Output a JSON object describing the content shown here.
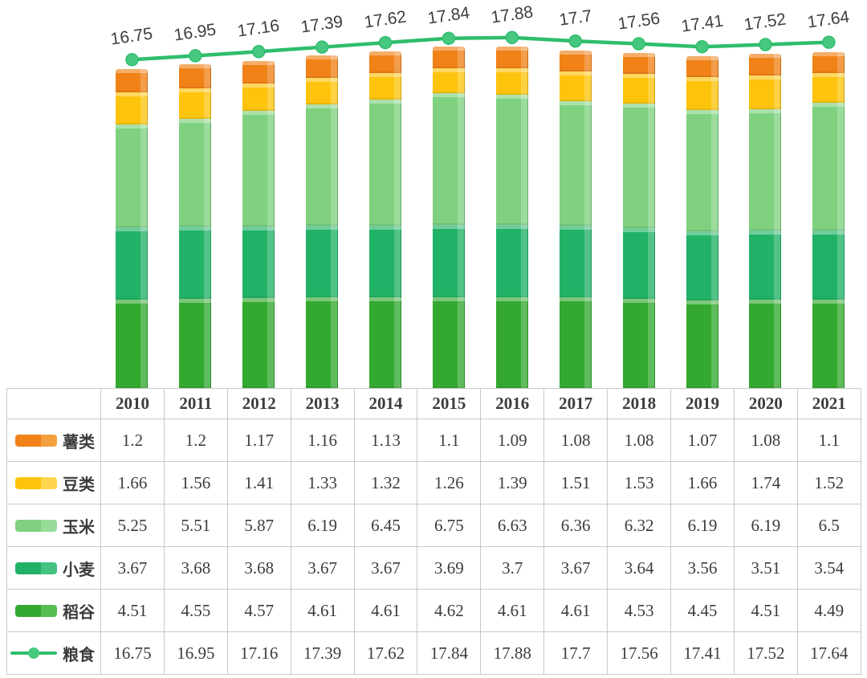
{
  "chart_data": {
    "type": "bar",
    "subtype": "stacked-3d-bars-with-total-line",
    "title": "",
    "categories": [
      "2010",
      "2011",
      "2012",
      "2013",
      "2014",
      "2015",
      "2016",
      "2017",
      "2018",
      "2019",
      "2020",
      "2021"
    ],
    "series": [
      {
        "name": "薯类",
        "type": "bar",
        "color": "#F08218",
        "color_light": "#F5A040",
        "values": [
          "1.2",
          "1.2",
          "1.17",
          "1.16",
          "1.13",
          "1.1",
          "1.09",
          "1.08",
          "1.08",
          "1.07",
          "1.08",
          "1.1"
        ]
      },
      {
        "name": "豆类",
        "type": "bar",
        "color": "#FEC40D",
        "color_light": "#FFD44F",
        "values": [
          "1.66",
          "1.56",
          "1.41",
          "1.33",
          "1.32",
          "1.26",
          "1.39",
          "1.51",
          "1.53",
          "1.66",
          "1.74",
          "1.52"
        ]
      },
      {
        "name": "玉米",
        "type": "bar",
        "color": "#7FD17F",
        "color_light": "#97DC98",
        "values": [
          "5.25",
          "5.51",
          "5.87",
          "6.19",
          "6.45",
          "6.75",
          "6.63",
          "6.36",
          "6.32",
          "6.19",
          "6.19",
          "6.5"
        ]
      },
      {
        "name": "小麦",
        "type": "bar",
        "color": "#22B267",
        "color_light": "#44C282",
        "values": [
          "3.67",
          "3.68",
          "3.68",
          "3.67",
          "3.67",
          "3.69",
          "3.7",
          "3.67",
          "3.64",
          "3.56",
          "3.51",
          "3.54"
        ]
      },
      {
        "name": "稻谷",
        "type": "bar",
        "color": "#33A930",
        "color_light": "#56BD53",
        "values": [
          "4.51",
          "4.55",
          "4.57",
          "4.61",
          "4.61",
          "4.62",
          "4.61",
          "4.61",
          "4.53",
          "4.45",
          "4.51",
          "4.49"
        ]
      },
      {
        "name": "粮食",
        "type": "line",
        "color": "#2EBD6C",
        "marker_color": "#47C87F",
        "values": [
          "16.75",
          "16.95",
          "17.16",
          "17.39",
          "17.62",
          "17.84",
          "17.88",
          "17.7",
          "17.56",
          "17.41",
          "17.52",
          "17.64"
        ]
      }
    ],
    "stack_order_bottom_to_top": [
      "稻谷",
      "小麦",
      "玉米",
      "豆类",
      "薯类"
    ],
    "data_labels": {
      "series": "粮食",
      "position": "above-line",
      "rotation_deg": -8,
      "color": "#3e3e3e"
    },
    "legend_position": "table-left-column",
    "grid": false,
    "axes_visible": false,
    "table_border_color": "#c8c8c8"
  }
}
